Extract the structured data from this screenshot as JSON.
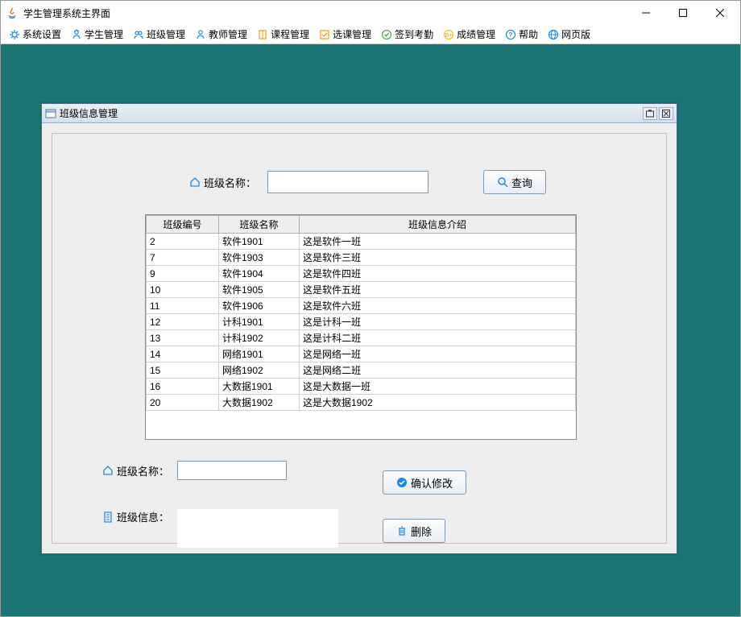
{
  "window": {
    "title": "学生管理系统主界面"
  },
  "menubar": {
    "items": [
      {
        "label": "系统设置",
        "icon": "gear",
        "color": "#1e88e5"
      },
      {
        "label": "学生管理",
        "icon": "student",
        "color": "#1e88e5"
      },
      {
        "label": "班级管理",
        "icon": "group",
        "color": "#1e88e5"
      },
      {
        "label": "教师管理",
        "icon": "teacher",
        "color": "#1e88e5"
      },
      {
        "label": "课程管理",
        "icon": "book",
        "color": "#ff9800"
      },
      {
        "label": "选课管理",
        "icon": "select",
        "color": "#ff9800"
      },
      {
        "label": "签到考勤",
        "icon": "check",
        "color": "#4caf50"
      },
      {
        "label": "成绩管理",
        "icon": "grade",
        "color": "#ffc107"
      },
      {
        "label": "帮助",
        "icon": "help",
        "color": "#1e88e5"
      },
      {
        "label": "网页版",
        "icon": "web",
        "color": "#1e88e5"
      }
    ]
  },
  "internal_frame": {
    "title": "班级信息管理"
  },
  "search": {
    "label": "班级名称：",
    "value": "",
    "button": "查询"
  },
  "table": {
    "columns": [
      "班级编号",
      "班级名称",
      "班级信息介绍"
    ],
    "rows": [
      [
        "2",
        "软件1901",
        "这是软件一班"
      ],
      [
        "7",
        "软件1903",
        "这是软件三班"
      ],
      [
        "9",
        "软件1904",
        "这是软件四班"
      ],
      [
        "10",
        "软件1905",
        "这是软件五班"
      ],
      [
        "11",
        "软件1906",
        "这是软件六班"
      ],
      [
        "12",
        "计科1901",
        "这是计科一班"
      ],
      [
        "13",
        "计科1902",
        "这是计科二班"
      ],
      [
        "14",
        "网络1901",
        "这是网络一班"
      ],
      [
        "15",
        "网络1902",
        "这是网络二班"
      ],
      [
        "16",
        "大数据1901",
        "这是大数据一班"
      ],
      [
        "20",
        "大数据1902",
        "这是大数据1902"
      ]
    ]
  },
  "form": {
    "name_label": "班级名称：",
    "name_value": "",
    "info_label": "班级信息：",
    "info_value": "",
    "confirm_button": "确认修改",
    "delete_button": "删除"
  },
  "colors": {
    "mdi_bg": "#1b7474",
    "panel_bg": "#eeeeee",
    "border": "#7a9ab8",
    "accent": "#1e88e5"
  }
}
